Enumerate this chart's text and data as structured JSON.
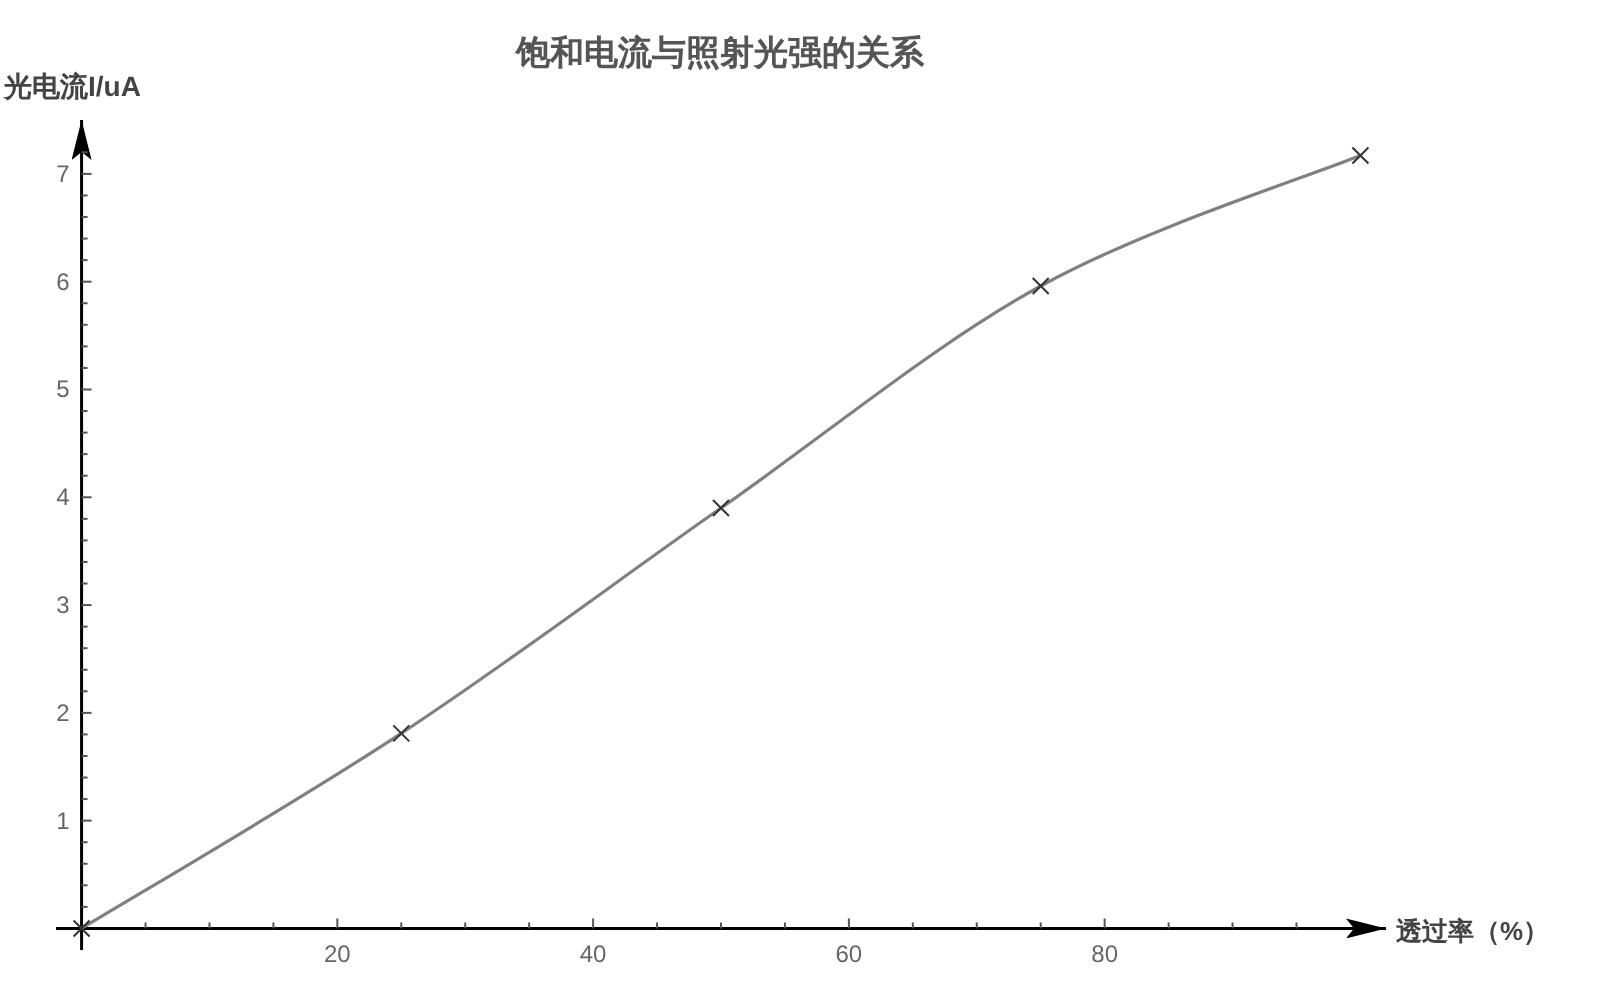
{
  "chart_data": {
    "type": "line",
    "title": "饱和电流与照射光强的关系",
    "xlabel": "透过率（%）",
    "ylabel": "光电流I/uA",
    "x": [
      0,
      25,
      50,
      75,
      100
    ],
    "series": [
      {
        "color": "#808080",
        "values": [
          0,
          1.81,
          3.9,
          5.96,
          7.17
        ]
      }
    ],
    "marker": "cross",
    "line_style": "solid",
    "grid": false,
    "xlim": [
      -2,
      102
    ],
    "ylim": [
      -0.2,
      7.5
    ],
    "xticks": [
      {
        "value": 5,
        "label": null
      },
      {
        "value": 10,
        "label": null
      },
      {
        "value": 15,
        "label": null
      },
      20,
      {
        "value": 25,
        "label": null
      },
      {
        "value": 30,
        "label": null
      },
      {
        "value": 35,
        "label": null
      },
      40,
      {
        "value": 45,
        "label": null
      },
      {
        "value": 50,
        "label": null
      },
      {
        "value": 55,
        "label": null
      },
      60,
      {
        "value": 65,
        "label": null
      },
      {
        "value": 70,
        "label": null
      },
      {
        "value": 75,
        "label": null
      },
      80,
      {
        "value": 85,
        "label": null
      },
      {
        "value": 90,
        "label": null
      },
      {
        "value": 95,
        "label": null
      }
    ],
    "yticks": [
      {
        "value": 0.2,
        "label": null
      },
      {
        "value": 0.4,
        "label": null
      },
      {
        "value": 0.6,
        "label": null
      },
      {
        "value": 0.8,
        "label": null
      },
      1,
      {
        "value": 1.2,
        "label": null
      },
      {
        "value": 1.4,
        "label": null
      },
      {
        "value": 1.6,
        "label": null
      },
      {
        "value": 1.8,
        "label": null
      },
      2,
      {
        "value": 2.2,
        "label": null
      },
      {
        "value": 2.4,
        "label": null
      },
      {
        "value": 2.6,
        "label": null
      },
      {
        "value": 2.8,
        "label": null
      },
      3,
      {
        "value": 3.2,
        "label": null
      },
      {
        "value": 3.4,
        "label": null
      },
      {
        "value": 3.6,
        "label": null
      },
      {
        "value": 3.8,
        "label": null
      },
      4,
      {
        "value": 4.2,
        "label": null
      },
      {
        "value": 4.4,
        "label": null
      },
      {
        "value": 4.6,
        "label": null
      },
      {
        "value": 4.8,
        "label": null
      },
      5,
      {
        "value": 5.2,
        "label": null
      },
      {
        "value": 5.4,
        "label": null
      },
      {
        "value": 5.6,
        "label": null
      },
      {
        "value": 5.8,
        "label": null
      },
      6,
      {
        "value": 6.2,
        "label": null
      },
      {
        "value": 6.4,
        "label": null
      },
      {
        "value": 6.6,
        "label": null
      },
      {
        "value": 6.8,
        "label": null
      },
      7,
      {
        "value": 7.2,
        "label": null
      }
    ]
  }
}
